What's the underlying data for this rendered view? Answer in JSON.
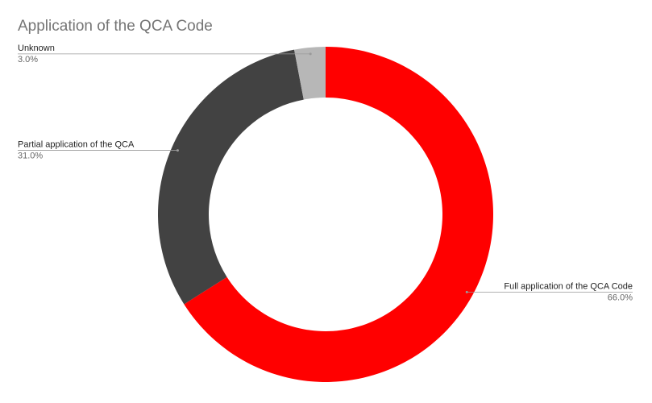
{
  "chart_data": {
    "type": "donut",
    "title": "Application of the QCA Code",
    "categories": [
      "Full application of the QCA Code",
      "Partial application of the QCA",
      "Unknown"
    ],
    "values": [
      66,
      31,
      3
    ],
    "value_labels": [
      "66.0%",
      "31.0%",
      "3.0%"
    ],
    "colors": [
      "#ff0000",
      "#424242",
      "#b7b7b7"
    ]
  }
}
